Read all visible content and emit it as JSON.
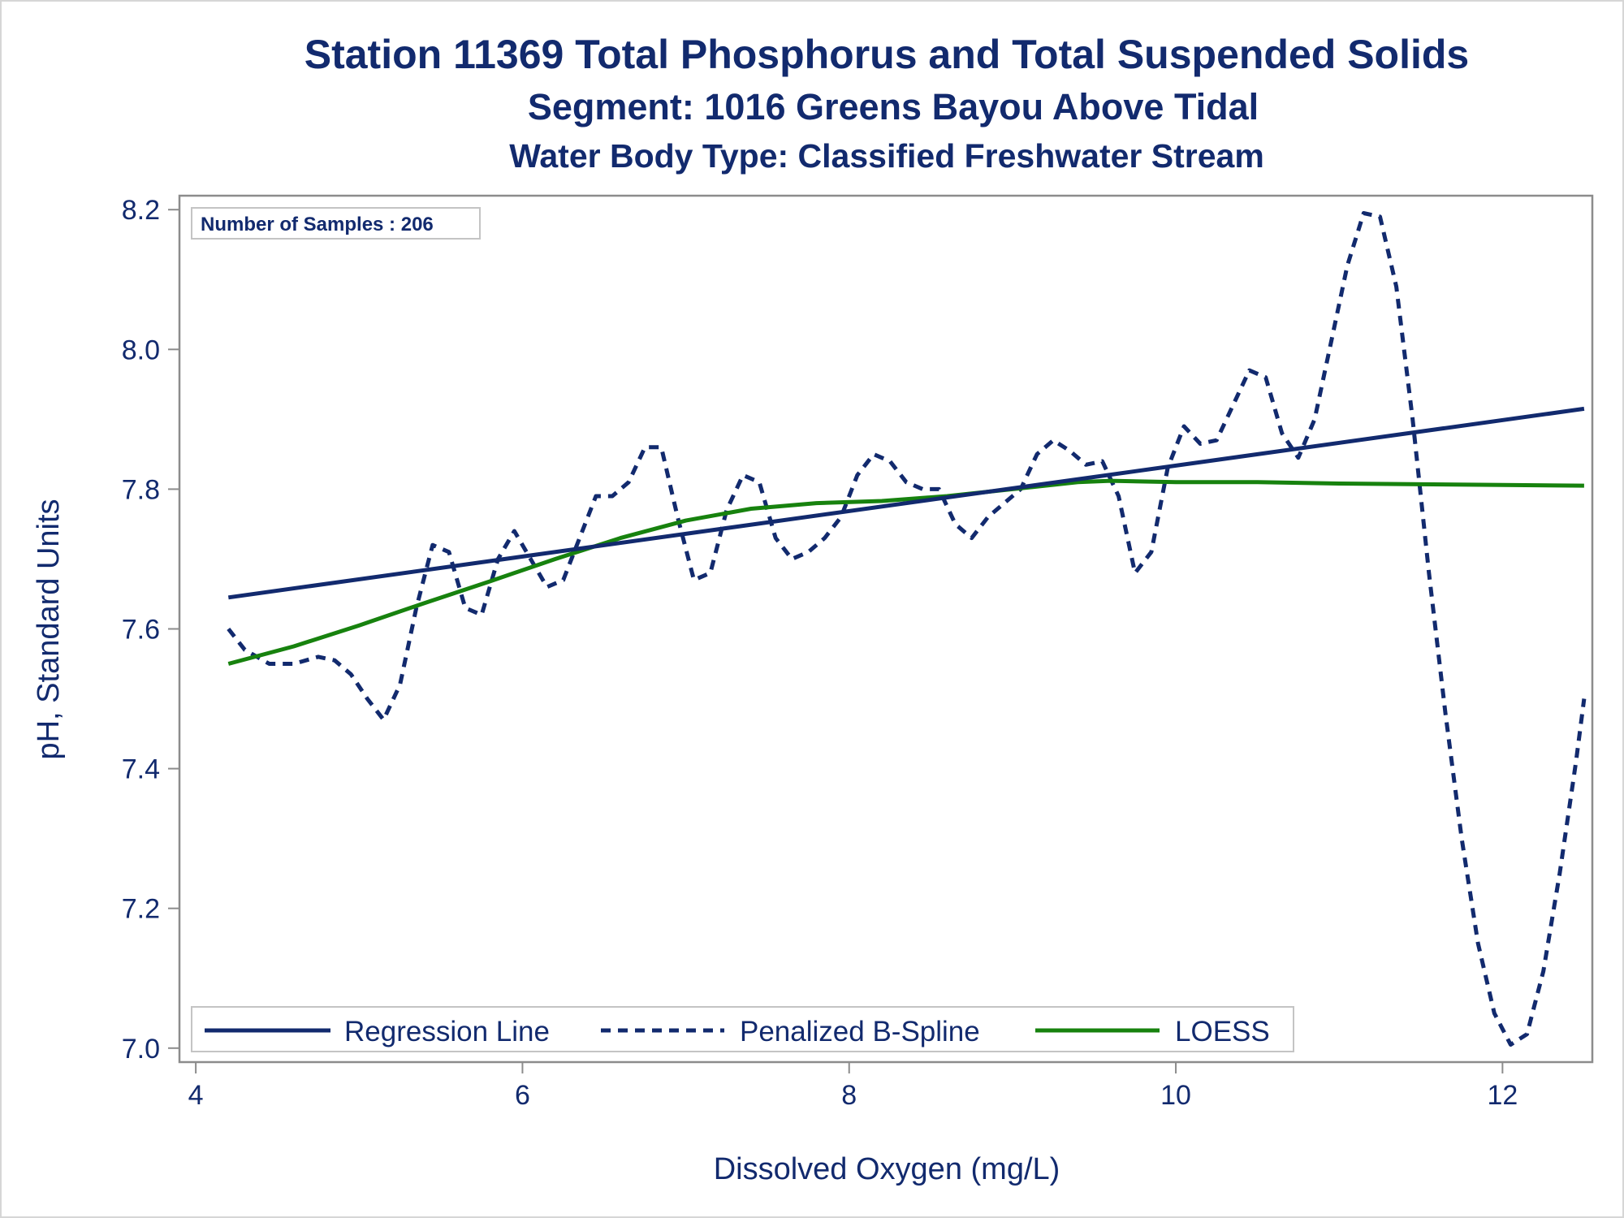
{
  "chart_data": {
    "type": "line",
    "title": "Station 11369  Total Phosphorus and Total Suspended Solids",
    "subtitle": "Segment: 1016  Greens Bayou Above Tidal",
    "subtitle2": "Water Body Type: Classified Freshwater Stream",
    "xlabel": "Dissolved Oxygen (mg/L)",
    "ylabel": "pH, Standard Units",
    "xlim": [
      3.9,
      12.55
    ],
    "ylim": [
      6.98,
      8.22
    ],
    "x_ticks": [
      "4",
      "6",
      "8",
      "10",
      "12"
    ],
    "x_tick_values": [
      4,
      6,
      8,
      10,
      12
    ],
    "y_ticks": [
      "7.0",
      "7.2",
      "7.4",
      "7.6",
      "7.8",
      "8.0",
      "8.2"
    ],
    "y_tick_values": [
      7.0,
      7.2,
      7.4,
      7.6,
      7.8,
      8.0,
      8.2
    ],
    "annotation": "Number of Samples : 206",
    "legend_position": "bottom-inside",
    "grid": false,
    "series": [
      {
        "name": "Regression Line",
        "style": "solid",
        "color": "#122a6e",
        "x": [
          4.2,
          12.5
        ],
        "y": [
          7.645,
          7.915
        ]
      },
      {
        "name": "Penalized B-Spline",
        "style": "dashed",
        "color": "#122a6e",
        "x": [
          4.2,
          4.3,
          4.45,
          4.6,
          4.75,
          4.85,
          4.95,
          5.05,
          5.15,
          5.25,
          5.35,
          5.45,
          5.55,
          5.65,
          5.75,
          5.85,
          5.95,
          6.05,
          6.15,
          6.25,
          6.35,
          6.45,
          6.55,
          6.65,
          6.75,
          6.85,
          6.95,
          7.05,
          7.15,
          7.25,
          7.35,
          7.45,
          7.55,
          7.65,
          7.75,
          7.85,
          7.95,
          8.05,
          8.15,
          8.25,
          8.35,
          8.45,
          8.55,
          8.65,
          8.75,
          8.85,
          8.95,
          9.05,
          9.15,
          9.25,
          9.35,
          9.45,
          9.55,
          9.65,
          9.75,
          9.85,
          9.95,
          10.05,
          10.15,
          10.25,
          10.35,
          10.45,
          10.55,
          10.65,
          10.75,
          10.85,
          10.95,
          11.05,
          11.15,
          11.25,
          11.35,
          11.45,
          11.55,
          11.65,
          11.75,
          11.85,
          11.95,
          12.05,
          12.15,
          12.25,
          12.35,
          12.45,
          12.5
        ],
        "y": [
          7.6,
          7.57,
          7.55,
          7.55,
          7.56,
          7.555,
          7.535,
          7.5,
          7.47,
          7.52,
          7.63,
          7.72,
          7.71,
          7.63,
          7.62,
          7.7,
          7.74,
          7.7,
          7.66,
          7.67,
          7.73,
          7.79,
          7.79,
          7.81,
          7.86,
          7.86,
          7.76,
          7.67,
          7.68,
          7.77,
          7.82,
          7.81,
          7.73,
          7.7,
          7.71,
          7.73,
          7.76,
          7.82,
          7.85,
          7.84,
          7.81,
          7.8,
          7.8,
          7.75,
          7.73,
          7.76,
          7.78,
          7.8,
          7.85,
          7.87,
          7.855,
          7.835,
          7.84,
          7.79,
          7.68,
          7.71,
          7.83,
          7.89,
          7.865,
          7.87,
          7.92,
          7.97,
          7.96,
          7.88,
          7.845,
          7.9,
          8.01,
          8.12,
          8.195,
          8.19,
          8.09,
          7.9,
          7.68,
          7.48,
          7.3,
          7.15,
          7.05,
          7.005,
          7.02,
          7.11,
          7.25,
          7.41,
          7.5
        ]
      },
      {
        "name": "LOESS",
        "style": "solid",
        "color": "#17820e",
        "x": [
          4.2,
          4.6,
          5.0,
          5.4,
          5.8,
          6.2,
          6.6,
          7.0,
          7.4,
          7.8,
          8.2,
          8.6,
          9.0,
          9.4,
          9.6,
          10.0,
          10.5,
          11.0,
          11.5,
          12.0,
          12.5
        ],
        "y": [
          7.55,
          7.575,
          7.605,
          7.637,
          7.668,
          7.7,
          7.73,
          7.755,
          7.772,
          7.78,
          7.783,
          7.79,
          7.8,
          7.81,
          7.812,
          7.81,
          7.81,
          7.808,
          7.807,
          7.806,
          7.805
        ]
      }
    ]
  }
}
